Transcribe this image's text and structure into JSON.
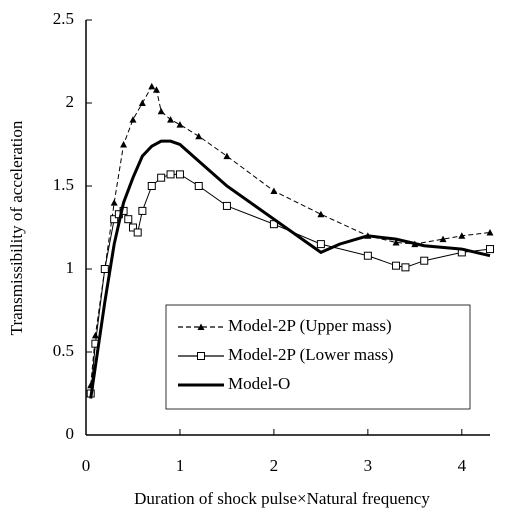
{
  "chart_data": {
    "type": "line",
    "x_label": "Duration of shock pulse×Natural frequency",
    "y_label": "Transmissibility of acceleration",
    "xlim": [
      0,
      4.3
    ],
    "xticks": [
      0,
      1,
      2,
      3,
      4
    ],
    "ylim": [
      0,
      2.5
    ],
    "yticks": [
      0,
      0.5,
      1,
      1.5,
      2,
      2.5
    ],
    "grid": false,
    "legend": "lower right",
    "series": [
      {
        "name": "Model-2P (Upper mass)",
        "color": "#000000",
        "marker": "triangle",
        "dash": true,
        "x": [
          0.05,
          0.1,
          0.2,
          0.3,
          0.4,
          0.5,
          0.6,
          0.7,
          0.75,
          0.8,
          0.9,
          1.0,
          1.2,
          1.5,
          2.0,
          2.5,
          3.0,
          3.3,
          3.5,
          3.8,
          4.0,
          4.3
        ],
        "values": [
          0.3,
          0.6,
          1.0,
          1.4,
          1.75,
          1.9,
          2.0,
          2.1,
          2.08,
          1.95,
          1.9,
          1.87,
          1.8,
          1.68,
          1.47,
          1.33,
          1.2,
          1.16,
          1.15,
          1.18,
          1.2,
          1.22
        ]
      },
      {
        "name": "Model-2P (Lower mass)",
        "color": "#000000",
        "marker": "square",
        "dash": false,
        "x": [
          0.05,
          0.1,
          0.2,
          0.3,
          0.35,
          0.4,
          0.45,
          0.5,
          0.55,
          0.6,
          0.7,
          0.8,
          0.9,
          1.0,
          1.2,
          1.5,
          2.0,
          2.5,
          3.0,
          3.3,
          3.4,
          3.6,
          4.0,
          4.3
        ],
        "values": [
          0.25,
          0.55,
          1.0,
          1.3,
          1.33,
          1.35,
          1.3,
          1.25,
          1.22,
          1.35,
          1.5,
          1.55,
          1.57,
          1.57,
          1.5,
          1.38,
          1.27,
          1.15,
          1.08,
          1.02,
          1.01,
          1.05,
          1.1,
          1.12
        ]
      },
      {
        "name": "Model-O",
        "color": "#000000",
        "marker": "none",
        "dash": false,
        "x": [
          0.05,
          0.2,
          0.3,
          0.4,
          0.5,
          0.6,
          0.7,
          0.8,
          0.9,
          1.0,
          1.2,
          1.5,
          2.0,
          2.3,
          2.5,
          2.7,
          3.0,
          3.3,
          3.6,
          4.0,
          4.3
        ],
        "values": [
          0.22,
          0.8,
          1.15,
          1.4,
          1.55,
          1.68,
          1.74,
          1.77,
          1.77,
          1.75,
          1.65,
          1.5,
          1.3,
          1.18,
          1.1,
          1.15,
          1.2,
          1.18,
          1.14,
          1.12,
          1.08
        ]
      }
    ]
  }
}
